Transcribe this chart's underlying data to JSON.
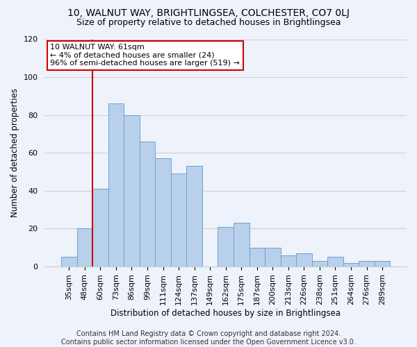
{
  "title": "10, WALNUT WAY, BRIGHTLINGSEA, COLCHESTER, CO7 0LJ",
  "subtitle": "Size of property relative to detached houses in Brightlingsea",
  "xlabel": "Distribution of detached houses by size in Brightlingsea",
  "ylabel": "Number of detached properties",
  "categories": [
    "35sqm",
    "48sqm",
    "60sqm",
    "73sqm",
    "86sqm",
    "99sqm",
    "111sqm",
    "124sqm",
    "137sqm",
    "149sqm",
    "162sqm",
    "175sqm",
    "187sqm",
    "200sqm",
    "213sqm",
    "226sqm",
    "238sqm",
    "251sqm",
    "264sqm",
    "276sqm",
    "289sqm"
  ],
  "values": [
    5,
    20,
    41,
    86,
    80,
    66,
    57,
    49,
    53,
    0,
    21,
    23,
    10,
    10,
    6,
    7,
    3,
    5,
    2,
    3,
    3
  ],
  "bar_color": "#b8d0eb",
  "bar_edge_color": "#6aa3d5",
  "highlight_color": "#cc0000",
  "highlight_bar_index": 2,
  "annotation_text": "10 WALNUT WAY: 61sqm\n← 4% of detached houses are smaller (24)\n96% of semi-detached houses are larger (519) →",
  "annotation_box_color": "#ffffff",
  "annotation_box_edge": "#cc0000",
  "ylim": [
    0,
    120
  ],
  "yticks": [
    0,
    20,
    40,
    60,
    80,
    100,
    120
  ],
  "grid_color": "#cccccc",
  "bg_color": "#eef2fa",
  "footer": "Contains HM Land Registry data © Crown copyright and database right 2024.\nContains public sector information licensed under the Open Government Licence v3.0.",
  "title_fontsize": 10,
  "subtitle_fontsize": 9,
  "xlabel_fontsize": 8.5,
  "ylabel_fontsize": 8.5,
  "tick_fontsize": 8,
  "footer_fontsize": 7,
  "annot_fontsize": 8
}
